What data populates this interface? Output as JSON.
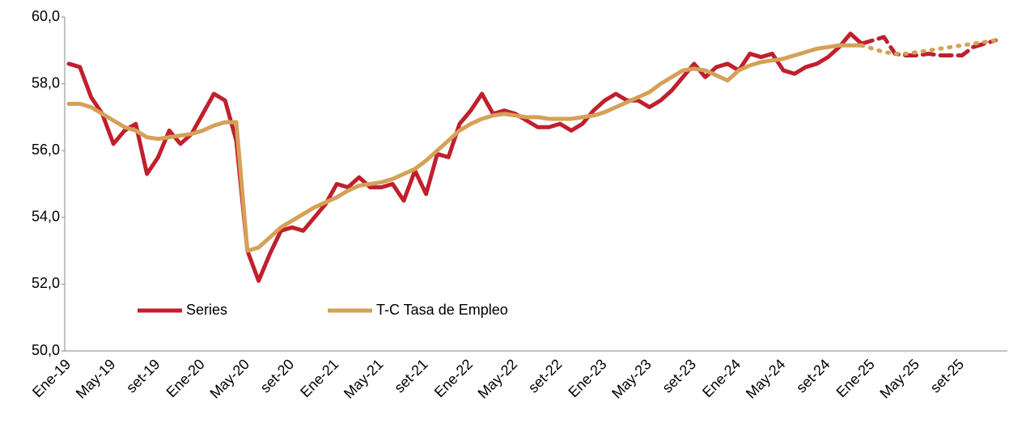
{
  "chart_data": {
    "type": "line",
    "categories": [
      "Ene-19",
      null,
      null,
      null,
      "May-19",
      null,
      null,
      null,
      "set-19",
      null,
      null,
      null,
      "Ene-20",
      null,
      null,
      null,
      "May-20",
      null,
      null,
      null,
      "set-20",
      null,
      null,
      null,
      "Ene-21",
      null,
      null,
      null,
      "May-21",
      null,
      null,
      null,
      "set-21",
      null,
      null,
      null,
      "Ene-22",
      null,
      null,
      null,
      "May-22",
      null,
      null,
      null,
      "set-22",
      null,
      null,
      null,
      "Ene-23",
      null,
      null,
      null,
      "May-23",
      null,
      null,
      null,
      "set-23",
      null,
      null,
      null,
      "Ene-24",
      null,
      null,
      null,
      "May-24",
      null,
      null,
      null,
      "set-24",
      null,
      null,
      null,
      "Ene-25",
      null,
      null,
      null,
      "May-25",
      null,
      null,
      null,
      "set-25",
      null,
      null,
      null
    ],
    "series": [
      {
        "name": "Series",
        "color": "#c0202e",
        "forecast_style": "dashed",
        "values": [
          58.6,
          58.5,
          57.6,
          57.1,
          56.2,
          56.6,
          56.8,
          55.3,
          55.8,
          56.6,
          56.2,
          56.5,
          57.1,
          57.7,
          57.5,
          56.3,
          53.0,
          52.1,
          52.9,
          53.6,
          53.7,
          53.6,
          54.0,
          54.4,
          55.0,
          54.9,
          55.2,
          54.9,
          54.9,
          55.0,
          54.5,
          55.4,
          54.7,
          55.9,
          55.8,
          56.8,
          57.2,
          57.7,
          57.1,
          57.2,
          57.1,
          56.9,
          56.7,
          56.7,
          56.8,
          56.6,
          56.8,
          57.2,
          57.5,
          57.7,
          57.5,
          57.5,
          57.3,
          57.5,
          57.8,
          58.2,
          58.6,
          58.2,
          58.5,
          58.6,
          58.4,
          58.9,
          58.8,
          58.9,
          58.4,
          58.3,
          58.5,
          58.6,
          58.8,
          59.1,
          59.5,
          59.2,
          59.3,
          59.4,
          58.9,
          58.85,
          58.85,
          58.9,
          58.85,
          58.85,
          58.85,
          59.1,
          59.2,
          59.3
        ]
      },
      {
        "name": "T-C Tasa de Empleo",
        "color": "#d4a157",
        "forecast_style": "dotted",
        "values": [
          57.4,
          57.4,
          57.3,
          57.1,
          56.9,
          56.7,
          56.6,
          56.4,
          56.35,
          56.4,
          56.45,
          56.5,
          56.6,
          56.75,
          56.85,
          56.85,
          53.0,
          53.1,
          53.4,
          53.7,
          53.9,
          54.1,
          54.3,
          54.45,
          54.6,
          54.8,
          54.95,
          55.0,
          55.05,
          55.15,
          55.3,
          55.45,
          55.7,
          56.0,
          56.3,
          56.6,
          56.8,
          56.95,
          57.05,
          57.1,
          57.05,
          57.0,
          57.0,
          56.95,
          56.95,
          56.95,
          57.0,
          57.05,
          57.15,
          57.3,
          57.45,
          57.6,
          57.75,
          58.0,
          58.2,
          58.4,
          58.45,
          58.4,
          58.25,
          58.1,
          58.4,
          58.55,
          58.65,
          58.7,
          58.75,
          58.85,
          58.95,
          59.05,
          59.1,
          59.15,
          59.15,
          59.15,
          59.05,
          58.95,
          58.9,
          58.9,
          58.95,
          59.0,
          59.05,
          59.1,
          59.15,
          59.2,
          59.25,
          59.3
        ]
      }
    ],
    "forecast_start": 71,
    "ylim": [
      50,
      60
    ],
    "yticks": [
      {
        "value": 50,
        "label": "50,0"
      },
      {
        "value": 52,
        "label": "52,0"
      },
      {
        "value": 54,
        "label": "54,0"
      },
      {
        "value": 56,
        "label": "56,0"
      },
      {
        "value": 58,
        "label": "58,0"
      },
      {
        "value": 60,
        "label": "60,0"
      }
    ],
    "grid": false,
    "legend": "lower left"
  }
}
